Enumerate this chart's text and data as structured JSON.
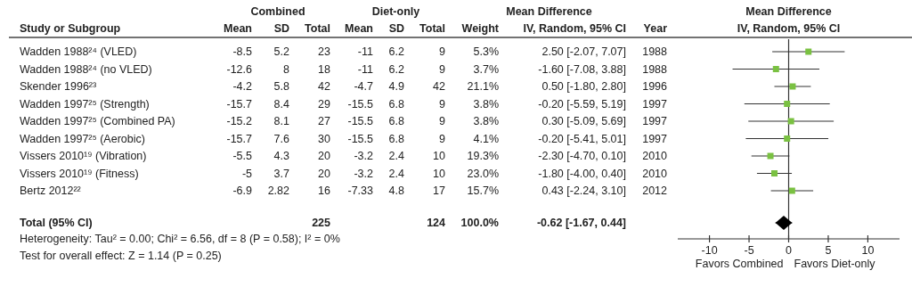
{
  "chart_data": [
    {
      "type": "other",
      "categories": [
        "Study or Subgroup",
        "Mean",
        "SD",
        "Total",
        "Mean",
        "SD",
        "Total",
        "Weight",
        "IV, Random, 95% CI",
        "Year"
      ],
      "y_categories": [
        "Wadden 1988²⁴ (VLED)",
        "Wadden 1988²⁴ (no VLED)",
        "Skender 1996²³",
        "Wadden 1997²⁵ (Strength)",
        "Wadden 1997²⁵ (Combined PA)",
        "Wadden 1997²⁵ (Aerobic)",
        "Vissers 2010¹⁹ (Vibration)",
        "Vissers 2010¹⁹ (Fitness)",
        "Bertz 2012²²",
        "Total (95% CI)"
      ],
      "cell_labels": [
        [
          "-8.5",
          "5.2",
          "23",
          "-11",
          "6.2",
          "9",
          "5.3%",
          "2.50 [-2.07, 7.07]",
          "1988"
        ],
        [
          "-12.6",
          "8",
          "18",
          "-11",
          "6.2",
          "9",
          "3.7%",
          "-1.60 [-7.08, 3.88]",
          "1988"
        ],
        [
          "-4.2",
          "5.8",
          "42",
          "-4.7",
          "4.9",
          "42",
          "21.1%",
          "0.50 [-1.80, 2.80]",
          "1996"
        ],
        [
          "-15.7",
          "8.4",
          "29",
          "-15.5",
          "6.8",
          "9",
          "3.8%",
          "-0.20 [-5.59, 5.19]",
          "1997"
        ],
        [
          "-15.2",
          "8.1",
          "27",
          "-15.5",
          "6.8",
          "9",
          "3.8%",
          "0.30 [-5.09, 5.69]",
          "1997"
        ],
        [
          "-15.7",
          "7.6",
          "30",
          "-15.5",
          "6.8",
          "9",
          "4.1%",
          "-0.20 [-5.41, 5.01]",
          "1997"
        ],
        [
          "-5.5",
          "4.3",
          "20",
          "-3.2",
          "2.4",
          "10",
          "19.3%",
          "-2.30 [-4.70, 0.10]",
          "2010"
        ],
        [
          "-5",
          "3.7",
          "20",
          "-3.2",
          "2.4",
          "10",
          "23.0%",
          "-1.80 [-4.00, 0.40]",
          "2010"
        ],
        [
          "-6.9",
          "2.82",
          "16",
          "-7.33",
          "4.8",
          "17",
          "15.7%",
          "0.43 [-2.24, 3.10]",
          "2012"
        ],
        [
          null,
          null,
          "225",
          null,
          null,
          "124",
          "100.0%",
          "-0.62 [-1.67, 0.44]",
          null
        ]
      ],
      "annotations": [
        "Combined",
        "Diet-only",
        "Mean Difference",
        "Heterogeneity: Tau² = 0.00; Chi² = 6.56, df = 8 (P = 0.58); I² = 0%",
        "Test for overall effect: Z = 1.14 (P = 0.25)"
      ]
    },
    {
      "type": "scatter",
      "orientation": "horizontal",
      "title": "Mean Difference",
      "subtitle": "IV, Random, 95% CI",
      "categories": [
        null,
        null,
        null,
        null,
        null,
        null,
        null,
        null,
        null,
        null,
        null
      ],
      "series": [
        {
          "color": "#7ac142",
          "marker": "square",
          "values": [
            2.5,
            -1.6,
            0.5,
            -0.2,
            0.3,
            -0.2,
            -2.3,
            -1.8,
            0.43,
            null,
            null
          ],
          "errors": [
            [
              -2.07,
              7.07
            ],
            [
              -7.08,
              3.88
            ],
            [
              -1.8,
              2.8
            ],
            [
              -5.59,
              5.19
            ],
            [
              -5.09,
              5.69
            ],
            [
              -5.41,
              5.01
            ],
            [
              -4.7,
              0.1
            ],
            [
              -4.0,
              0.4
            ],
            [
              -2.24,
              3.1
            ],
            null,
            null
          ]
        },
        {
          "color": "#000000",
          "marker": "diamond",
          "values": [
            null,
            null,
            null,
            null,
            null,
            null,
            null,
            null,
            null,
            null,
            -0.62
          ],
          "errors": [
            null,
            null,
            null,
            null,
            null,
            null,
            null,
            null,
            null,
            null,
            [
              -1.67,
              0.44
            ]
          ]
        }
      ],
      "xlim": [
        -14,
        14
      ],
      "xticks": [
        -10,
        -5,
        0,
        5,
        10
      ],
      "tick_labels": "x",
      "ref_lines": [
        {
          "axis": "x",
          "value": 0,
          "color": "#333333"
        }
      ],
      "annotations": [
        "Favors Combined",
        "Favors Diet-only"
      ]
    }
  ]
}
